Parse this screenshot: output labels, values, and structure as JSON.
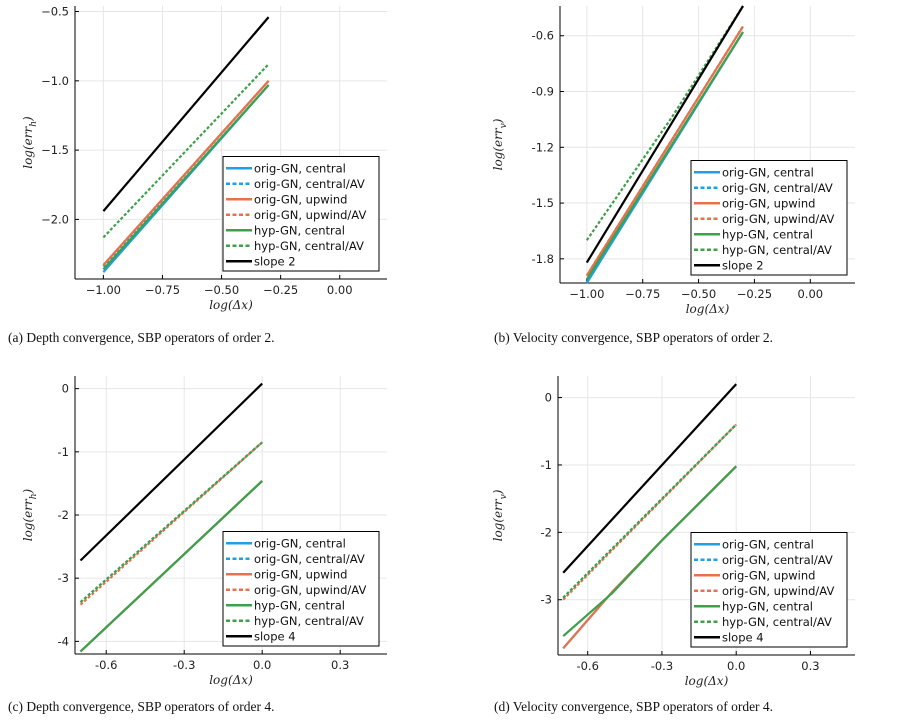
{
  "chart_data": [
    {
      "type": "line",
      "caption": "(a) Depth convergence, SBP operators of order 2.",
      "xlabel": "log(Δx)",
      "ylabel": "log(err_h)",
      "xlim": [
        -1.12,
        0.2
      ],
      "ylim": [
        -2.43,
        -0.46
      ],
      "xticks": [
        -1.0,
        -0.75,
        -0.5,
        -0.25,
        0.0
      ],
      "xtick_labels": [
        "−1.00",
        "−0.75",
        "−0.50",
        "−0.25",
        "0.00"
      ],
      "yticks": [
        -2.0,
        -1.5,
        -1.0,
        -0.5
      ],
      "ytick_labels": [
        "−2.0",
        "−1.5",
        "−1.0",
        "−0.5"
      ],
      "grid": true,
      "legend_position": "bottom-right",
      "series": [
        {
          "name": "orig-GN, central",
          "color": "#1f9fe6",
          "dash": "solid",
          "x": [
            -1.0,
            -0.301
          ],
          "y": [
            -2.38,
            -1.03
          ]
        },
        {
          "name": "orig-GN, central/AV",
          "color": "#1f9fe6",
          "dash": "dotted",
          "x": [
            -1.0,
            -0.301
          ],
          "y": [
            -2.34,
            -1.0
          ]
        },
        {
          "name": "orig-GN, upwind",
          "color": "#e8704a",
          "dash": "solid",
          "x": [
            -1.0,
            -0.301
          ],
          "y": [
            -2.33,
            -1.0
          ]
        },
        {
          "name": "orig-GN, upwind/AV",
          "color": "#e8704a",
          "dash": "dotted",
          "x": [
            -1.0,
            -0.301
          ],
          "y": [
            -2.33,
            -1.0
          ]
        },
        {
          "name": "hyp-GN, central",
          "color": "#3ea04a",
          "dash": "solid",
          "x": [
            -1.0,
            -0.301
          ],
          "y": [
            -2.36,
            -1.03
          ]
        },
        {
          "name": "hyp-GN, central/AV",
          "color": "#3ea04a",
          "dash": "dotted",
          "x": [
            -1.0,
            -0.301
          ],
          "y": [
            -2.13,
            -0.88
          ]
        },
        {
          "name": "slope 2",
          "color": "#000000",
          "dash": "solid",
          "x": [
            -1.0,
            -0.301
          ],
          "y": [
            -1.94,
            -0.54
          ]
        }
      ]
    },
    {
      "type": "line",
      "caption": "(b) Velocity convergence, SBP operators of order 2.",
      "xlabel": "log(Δx)",
      "ylabel": "log(err_v)",
      "xlim": [
        -1.12,
        0.2
      ],
      "ylim": [
        -1.93,
        -0.44
      ],
      "xticks": [
        -1.0,
        -0.75,
        -0.5,
        -0.25,
        0.0
      ],
      "xtick_labels": [
        "−1.00",
        "−0.75",
        "−0.50",
        "−0.25",
        "0.00"
      ],
      "yticks": [
        -1.8,
        -1.5,
        -1.2,
        -0.9,
        -0.6
      ],
      "ytick_labels": [
        "-1.8",
        "-1.5",
        "-1.2",
        "-0.9",
        "-0.6"
      ],
      "grid": true,
      "legend_position": "bottom-right",
      "series": [
        {
          "name": "orig-GN, central",
          "color": "#1f9fe6",
          "dash": "solid",
          "x": [
            -1.0,
            -0.301
          ],
          "y": [
            -1.93,
            -0.58
          ]
        },
        {
          "name": "orig-GN, central/AV",
          "color": "#1f9fe6",
          "dash": "dotted",
          "x": [
            -1.0,
            -0.301
          ],
          "y": [
            -1.89,
            -0.55
          ]
        },
        {
          "name": "orig-GN, upwind",
          "color": "#e8704a",
          "dash": "solid",
          "x": [
            -1.0,
            -0.301
          ],
          "y": [
            -1.89,
            -0.55
          ]
        },
        {
          "name": "orig-GN, upwind/AV",
          "color": "#e8704a",
          "dash": "dotted",
          "x": [
            -1.0,
            -0.301
          ],
          "y": [
            -1.89,
            -0.55
          ]
        },
        {
          "name": "hyp-GN, central",
          "color": "#3ea04a",
          "dash": "solid",
          "x": [
            -1.0,
            -0.301
          ],
          "y": [
            -1.91,
            -0.58
          ]
        },
        {
          "name": "hyp-GN, central/AV",
          "color": "#3ea04a",
          "dash": "dotted",
          "x": [
            -1.0,
            -0.62,
            -0.301
          ],
          "y": [
            -1.7,
            -1.04,
            -0.44
          ]
        },
        {
          "name": "slope 2",
          "color": "#000000",
          "dash": "solid",
          "x": [
            -1.0,
            -0.301
          ],
          "y": [
            -1.82,
            -0.44
          ]
        }
      ]
    },
    {
      "type": "line",
      "caption": "(c) Depth convergence, SBP operators of order 4.",
      "xlabel": "log(Δx)",
      "ylabel": "log(err_h)",
      "xlim": [
        -0.72,
        0.48
      ],
      "ylim": [
        -4.2,
        0.2
      ],
      "xticks": [
        -0.6,
        -0.3,
        0.0,
        0.3
      ],
      "xtick_labels": [
        "-0.6",
        "-0.3",
        "0.0",
        "0.3"
      ],
      "yticks": [
        -4,
        -3,
        -2,
        -1,
        0
      ],
      "ytick_labels": [
        "-4",
        "-3",
        "-2",
        "-1",
        "0"
      ],
      "grid": true,
      "legend_position": "bottom-right",
      "series": [
        {
          "name": "orig-GN, central",
          "color": "#1f9fe6",
          "dash": "solid",
          "x": [
            -0.699,
            0.0
          ],
          "y": [
            -4.16,
            -1.46
          ]
        },
        {
          "name": "orig-GN, central/AV",
          "color": "#1f9fe6",
          "dash": "dotted",
          "x": [
            -0.699,
            0.0
          ],
          "y": [
            -3.38,
            -0.85
          ]
        },
        {
          "name": "orig-GN, upwind",
          "color": "#e8704a",
          "dash": "solid",
          "x": [
            -0.699,
            0.0
          ],
          "y": [
            -4.16,
            -1.46
          ]
        },
        {
          "name": "orig-GN, upwind/AV",
          "color": "#e8704a",
          "dash": "dotted",
          "x": [
            -0.699,
            0.0
          ],
          "y": [
            -3.42,
            -0.85
          ]
        },
        {
          "name": "hyp-GN, central",
          "color": "#3ea04a",
          "dash": "solid",
          "x": [
            -0.699,
            0.0
          ],
          "y": [
            -4.16,
            -1.46
          ]
        },
        {
          "name": "hyp-GN, central/AV",
          "color": "#3ea04a",
          "dash": "dotted",
          "x": [
            -0.699,
            0.0
          ],
          "y": [
            -3.38,
            -0.85
          ]
        },
        {
          "name": "slope 4",
          "color": "#000000",
          "dash": "solid",
          "x": [
            -0.699,
            0.0
          ],
          "y": [
            -2.72,
            0.08
          ]
        }
      ]
    },
    {
      "type": "line",
      "caption": "(d) Velocity convergence, SBP operators of order 4.",
      "xlabel": "log(Δx)",
      "ylabel": "log(err_v)",
      "xlim": [
        -0.72,
        0.48
      ],
      "ylim": [
        -3.82,
        0.32
      ],
      "xticks": [
        -0.6,
        -0.3,
        0.0,
        0.3
      ],
      "xtick_labels": [
        "-0.6",
        "-0.3",
        "0.0",
        "0.3"
      ],
      "yticks": [
        -3,
        -2,
        -1,
        0
      ],
      "ytick_labels": [
        "-3",
        "-2",
        "-1",
        "0"
      ],
      "grid": true,
      "legend_position": "bottom-right",
      "series": [
        {
          "name": "orig-GN, central",
          "color": "#1f9fe6",
          "dash": "solid",
          "x": [
            -0.699,
            -0.5,
            -0.3,
            0.0
          ],
          "y": [
            -3.72,
            -2.88,
            -2.12,
            -1.02
          ]
        },
        {
          "name": "orig-GN, central/AV",
          "color": "#1f9fe6",
          "dash": "dotted",
          "x": [
            -0.699,
            0.0
          ],
          "y": [
            -2.97,
            -0.4
          ]
        },
        {
          "name": "orig-GN, upwind",
          "color": "#e8704a",
          "dash": "solid",
          "x": [
            -0.699,
            -0.5,
            -0.3,
            0.0
          ],
          "y": [
            -3.72,
            -2.88,
            -2.12,
            -1.02
          ]
        },
        {
          "name": "orig-GN, upwind/AV",
          "color": "#e8704a",
          "dash": "dotted",
          "x": [
            -0.699,
            0.0
          ],
          "y": [
            -3.0,
            -0.4
          ]
        },
        {
          "name": "hyp-GN, central",
          "color": "#3ea04a",
          "dash": "solid",
          "x": [
            -0.699,
            -0.5,
            -0.3,
            0.0
          ],
          "y": [
            -3.54,
            -2.9,
            -2.12,
            -1.02
          ]
        },
        {
          "name": "hyp-GN, central/AV",
          "color": "#3ea04a",
          "dash": "dotted",
          "x": [
            -0.699,
            0.0
          ],
          "y": [
            -2.97,
            -0.4
          ]
        },
        {
          "name": "slope 4",
          "color": "#000000",
          "dash": "solid",
          "x": [
            -0.699,
            0.0
          ],
          "y": [
            -2.6,
            0.2
          ]
        }
      ]
    }
  ]
}
